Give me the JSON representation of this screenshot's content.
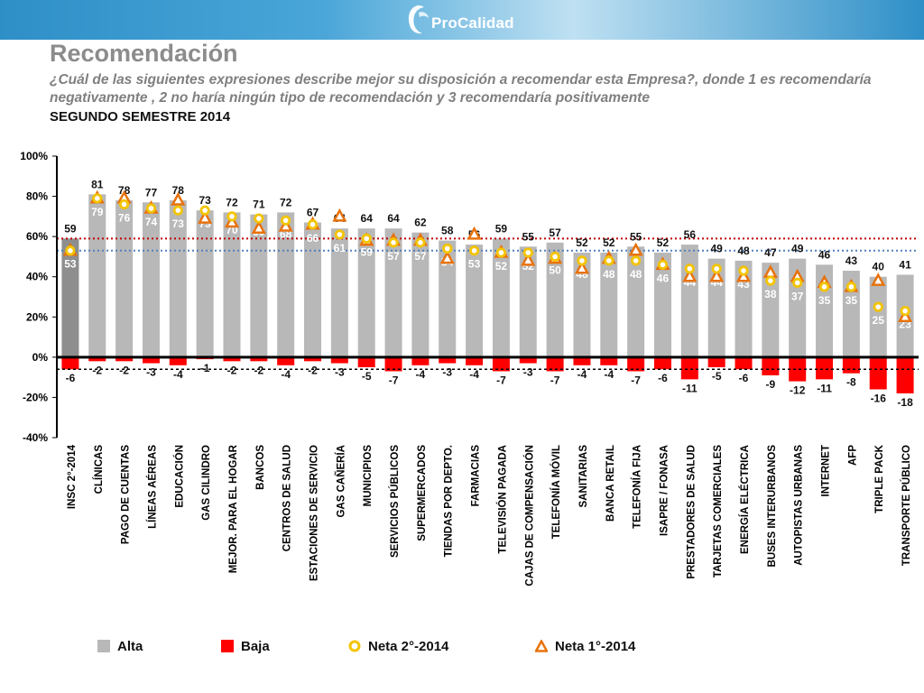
{
  "header": {
    "brand": "ProCalidad",
    "title": "Recomendación",
    "subtitle": "¿Cuál de las siguientes expresiones describe mejor su disposición a recomendar esta Empresa?, donde 1 es recomendaría negativamente , 2 no haría ningún tipo de recomendación  y 3 recomendaría positivamente",
    "period": "SEGUNDO SEMESTRE 2014"
  },
  "colors": {
    "alta": "#b8b8b8",
    "alta_insc": "#8e8e8e",
    "baja": "#ff0000",
    "neta2": "#f4c400",
    "neta1": "#e8720c",
    "ref_red": "#c00000",
    "ref_blue": "#4f81bd"
  },
  "legend": {
    "alta": "Alta",
    "baja": "Baja",
    "neta2": "Neta 2°-2014",
    "neta1": "Neta 1°-2014"
  },
  "chart_data": {
    "type": "bar",
    "ylim": [
      -40,
      100
    ],
    "yticks": [
      -40,
      -20,
      0,
      20,
      40,
      60,
      80,
      100
    ],
    "ytick_labels": [
      "-40%",
      "-20%",
      "0%",
      "20%",
      "40%",
      "60%",
      "80%",
      "100%"
    ],
    "reference_lines": {
      "alta_insc": 59,
      "neta_insc": 53,
      "baja_insc": -6
    },
    "categories": [
      "INSC 2°-2014",
      "CLÍNICAS",
      "PAGO DE CUENTAS",
      "LÍNEAS AÉREAS",
      "EDUCACIÓN",
      "GAS CILINDRO",
      "MEJOR. PARA EL HOGAR",
      "BANCOS",
      "CENTROS DE SALUD",
      "ESTACIONES DE SERVICIO",
      "GAS CAÑERÍA",
      "MUNICIPIOS",
      "SERVICIOS PÚBLICOS",
      "SUPERMERCADOS",
      "TIENDAS POR DEPTO.",
      "FARMACIAS",
      "TELEVISIÓN PAGADA",
      "CAJAS DE COMPENSACIÓN",
      "TELEFONÍA MÓVIL",
      "SANITARIAS",
      "BANCA RETAIL",
      "TELEFONÍA FIJA",
      "ISAPRE / FONASA",
      "PRESTADORES DE SALUD",
      "TARJETAS COMERCIALES",
      "ENERGÍA ELÉCTRICA",
      "BUSES INTERURBANOS",
      "AUTOPISTAS URBANAS",
      "INTERNET",
      "AFP",
      "TRIPLE PACK",
      "TRANSPORTE PÚBLICO"
    ],
    "series": [
      {
        "name": "Alta",
        "values": [
          59,
          81,
          78,
          77,
          78,
          73,
          72,
          71,
          72,
          67,
          64,
          64,
          64,
          62,
          58,
          56,
          59,
          55,
          57,
          52,
          52,
          55,
          52,
          56,
          49,
          48,
          47,
          49,
          46,
          43,
          40,
          41
        ]
      },
      {
        "name": "Baja",
        "values": [
          -6,
          -2,
          -2,
          -3,
          -4,
          -1,
          -2,
          -2,
          -4,
          -2,
          -3,
          -5,
          -7,
          -4,
          -3,
          -4,
          -7,
          -3,
          -7,
          -4,
          -4,
          -7,
          -6,
          -11,
          -5,
          -6,
          -9,
          -12,
          -11,
          -8,
          -16,
          -18
        ]
      },
      {
        "name": "Neta 2°-2014",
        "values": [
          53,
          79,
          76,
          74,
          73,
          73,
          70,
          69,
          68,
          66,
          61,
          59,
          57,
          57,
          54,
          53,
          52,
          52,
          50,
          48,
          48,
          48,
          46,
          44,
          44,
          43,
          38,
          37,
          35,
          35,
          25,
          23
        ]
      },
      {
        "name": "Neta 1°-2014",
        "values": [
          53,
          79,
          79,
          74,
          78,
          69,
          67,
          64,
          65,
          66,
          70,
          58,
          58,
          58,
          49,
          61,
          52,
          48,
          49,
          44,
          49,
          53,
          46,
          40,
          40,
          40,
          42,
          40,
          37,
          35,
          38,
          20
        ]
      }
    ]
  }
}
